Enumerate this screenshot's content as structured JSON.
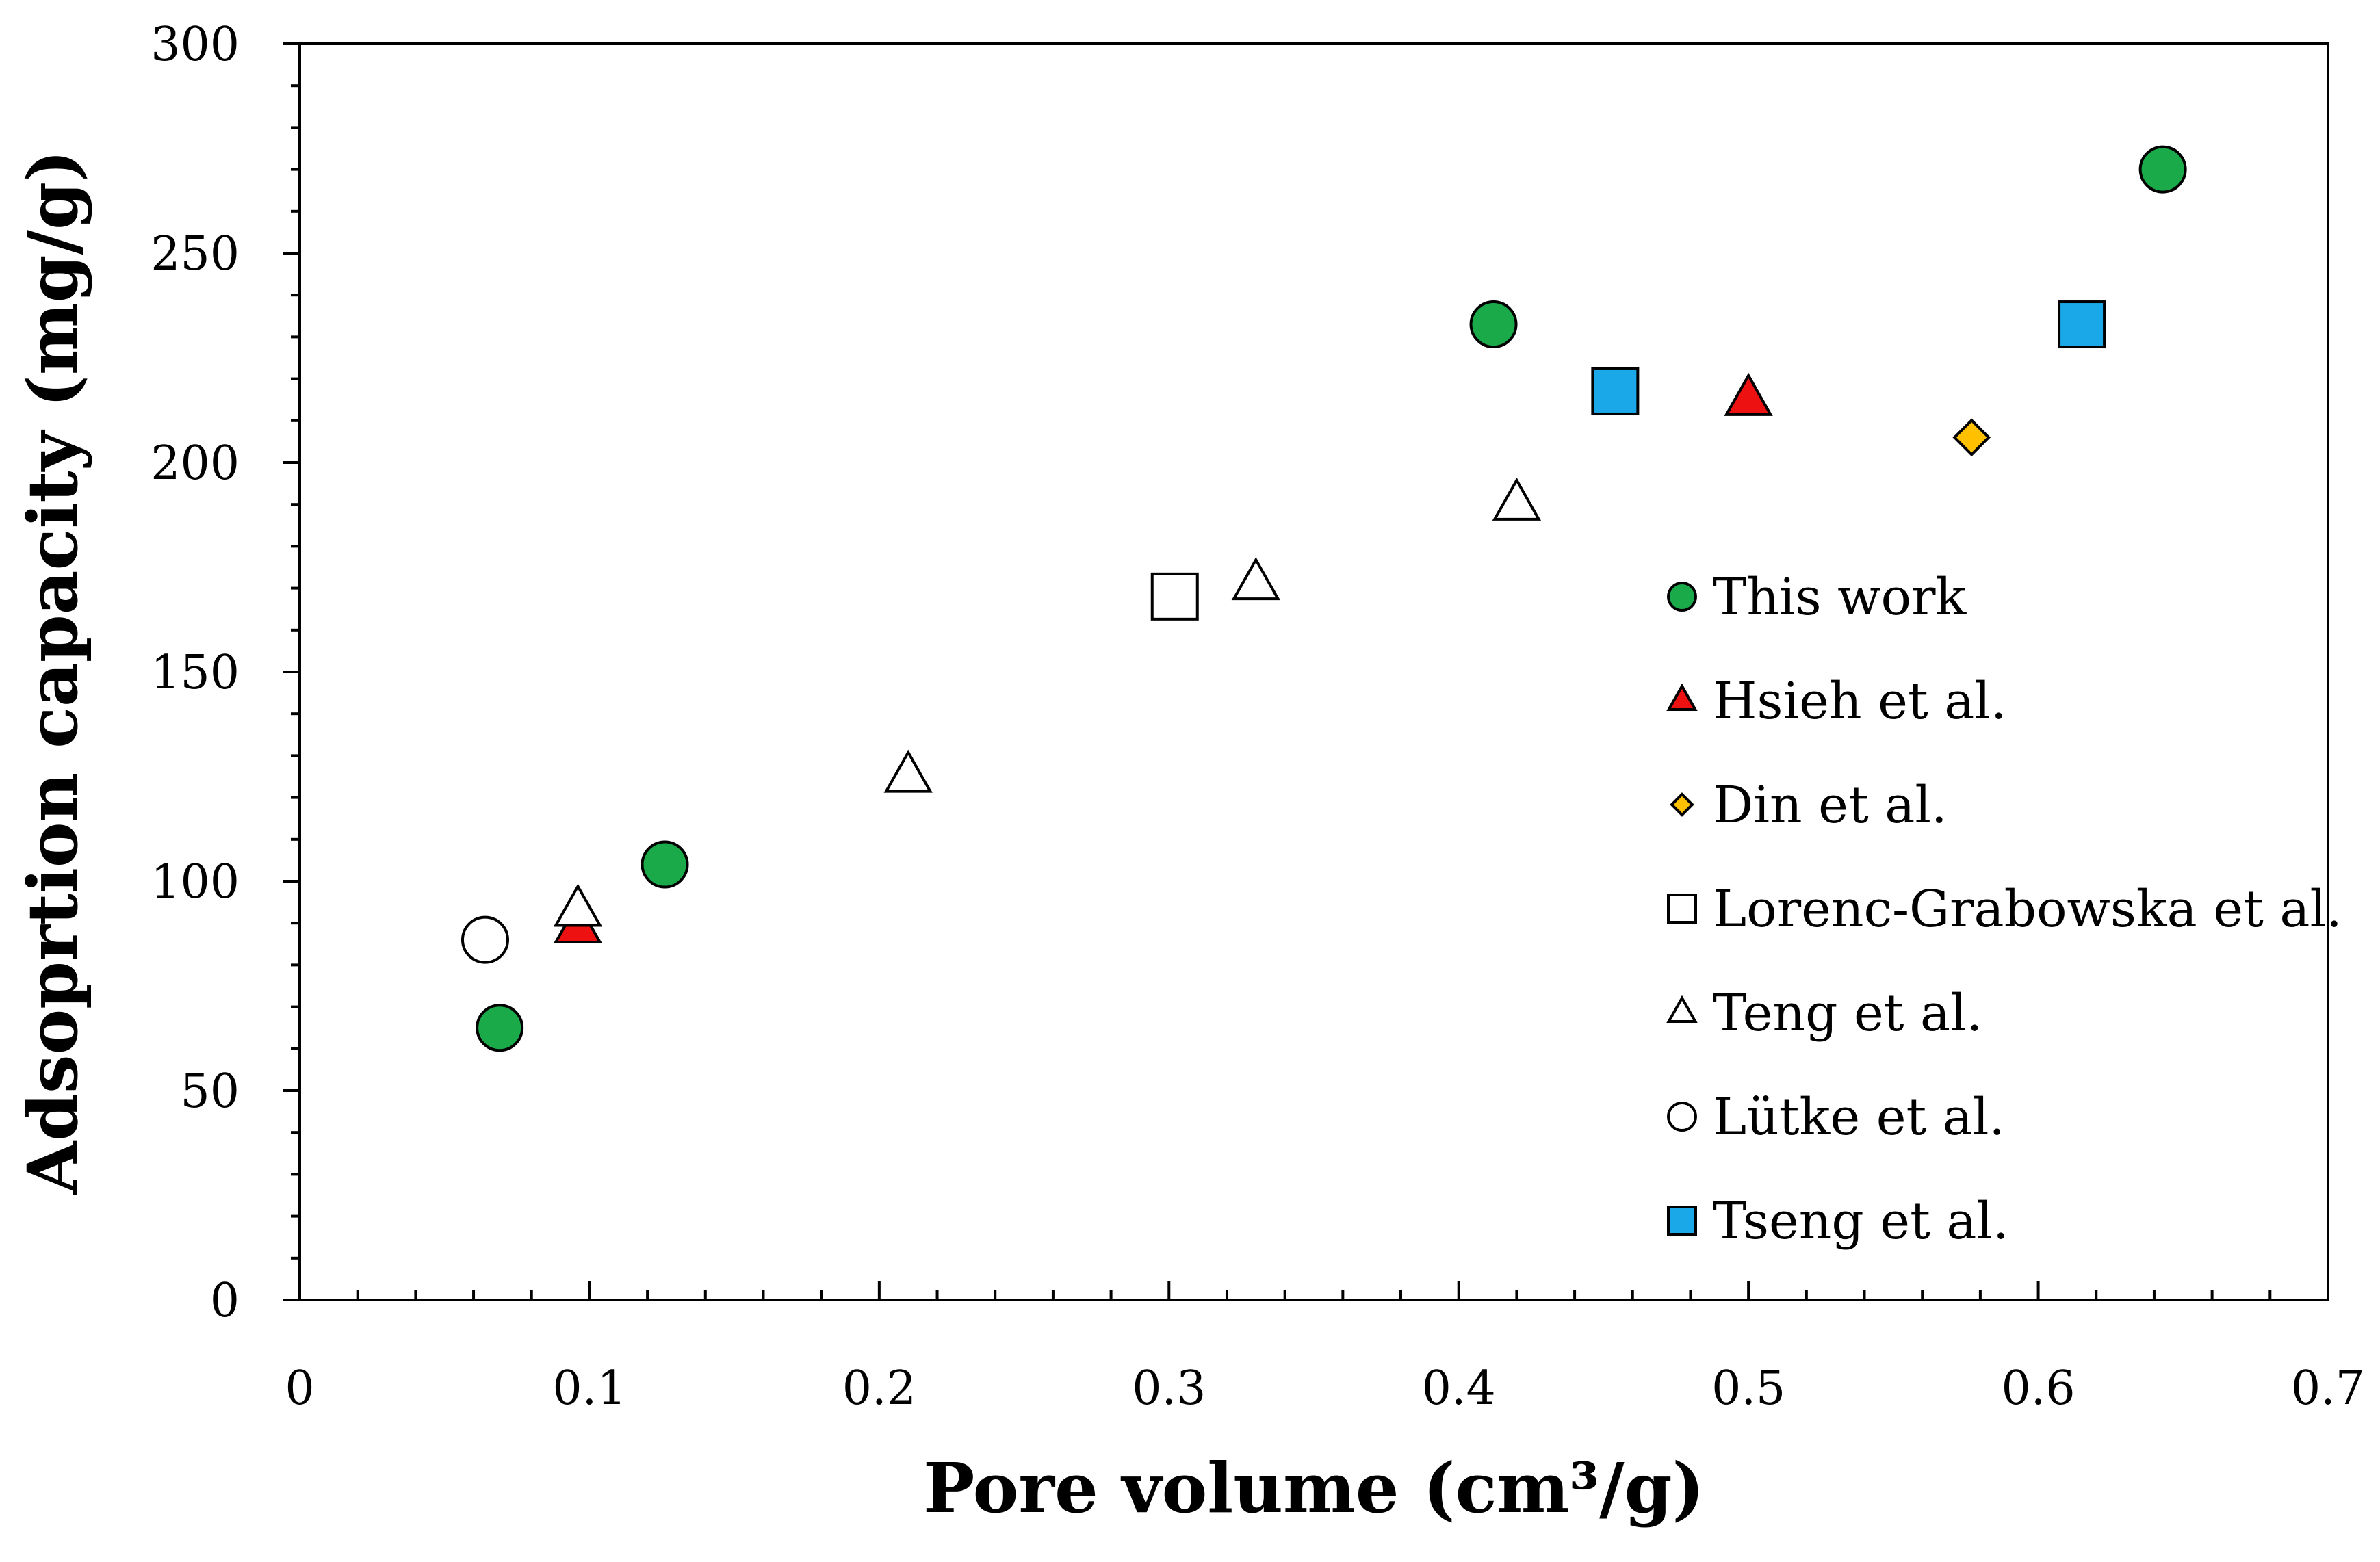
{
  "chart_data": {
    "type": "scatter",
    "title": "",
    "xlabel": "Pore volume (cm³/g)",
    "ylabel": "Adsoprtion capacity (mg/g)",
    "xlim": [
      0,
      0.7
    ],
    "ylim": [
      0,
      300
    ],
    "x_ticks": [
      "0",
      "0.1",
      "0.2",
      "0.3",
      "0.4",
      "0.5",
      "0.6",
      "0.7"
    ],
    "y_ticks": [
      "0",
      "50",
      "100",
      "150",
      "200",
      "250",
      "300"
    ],
    "grid": false,
    "legend_position": "right",
    "series": [
      {
        "name": "This work",
        "marker": "circle",
        "fill": "#1aaa4a",
        "points": [
          [
            0.069,
            65
          ],
          [
            0.126,
            104
          ],
          [
            0.412,
            233
          ],
          [
            0.643,
            270
          ]
        ]
      },
      {
        "name": "Hsieh et al.",
        "marker": "triangle",
        "fill": "#ee1111",
        "points": [
          [
            0.096,
            89
          ],
          [
            0.5,
            215
          ]
        ]
      },
      {
        "name": "Din et al.",
        "marker": "diamond",
        "fill": "#ffc000",
        "points": [
          [
            0.577,
            206
          ]
        ]
      },
      {
        "name": "Lorenc-Grabowska et al.",
        "marker": "square",
        "fill": "#ffffff",
        "points": [
          [
            0.302,
            168
          ]
        ]
      },
      {
        "name": "Teng et al.",
        "marker": "triangle",
        "fill": "#ffffff",
        "points": [
          [
            0.096,
            93
          ],
          [
            0.21,
            125
          ],
          [
            0.33,
            171
          ],
          [
            0.42,
            190
          ]
        ]
      },
      {
        "name": "Lütke et al.",
        "marker": "circle",
        "fill": "#ffffff",
        "points": [
          [
            0.064,
            86
          ]
        ]
      },
      {
        "name": "Tseng et al.",
        "marker": "square",
        "fill": "#1aa8e8",
        "points": [
          [
            0.454,
            217
          ],
          [
            0.615,
            233
          ]
        ]
      }
    ]
  }
}
